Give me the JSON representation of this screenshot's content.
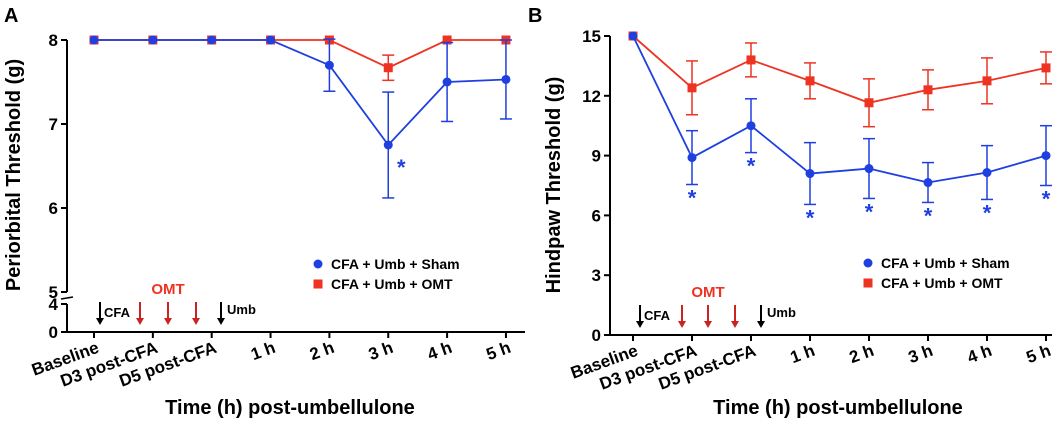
{
  "panels": [
    {
      "letter": "A",
      "colors": {
        "sham": "#1f3fe0",
        "omt": "#ee3322",
        "axis": "#000000",
        "annot_red": "#cc2222"
      },
      "chart_data": {
        "type": "line",
        "title": "",
        "xlabel": "Time (h) post-umbellulone",
        "ylabel": "Periorbital Threshold (g)",
        "categories": [
          "Baseline",
          "D3 post-CFA",
          "D5 post-CFA",
          "1 h",
          "2 h",
          "3 h",
          "4 h",
          "5 h"
        ],
        "ylim": [
          0,
          8
        ],
        "y_break": [
          4,
          5
        ],
        "yticks": [
          0,
          4,
          5,
          6,
          7,
          8
        ],
        "legend_position": "lower-right",
        "series": [
          {
            "name": "CFA + Umb + Sham",
            "marker": "circle",
            "color": "#1f3fe0",
            "values": [
              8,
              8,
              8,
              8,
              7.7,
              6.75,
              7.5,
              7.53
            ],
            "errors": [
              0,
              0,
              0,
              0,
              0.31,
              0.63,
              0.47,
              0.47
            ]
          },
          {
            "name": "CFA + Umb + OMT",
            "marker": "square",
            "color": "#ee3322",
            "values": [
              8,
              8,
              8,
              8,
              8,
              7.67,
              8,
              8
            ],
            "errors": [
              0,
              0,
              0,
              0,
              0,
              0.15,
              0,
              0
            ]
          }
        ],
        "significance": [
          {
            "category": "3 h",
            "label": "*"
          }
        ],
        "annotations": {
          "omt_label": "OMT",
          "cfa_label": "CFA",
          "umb_label": "Umb"
        }
      }
    },
    {
      "letter": "B",
      "colors": {
        "sham": "#1f3fe0",
        "omt": "#ee3322",
        "axis": "#000000",
        "annot_red": "#cc2222"
      },
      "chart_data": {
        "type": "line",
        "title": "",
        "xlabel": "Time (h) post-umbellulone",
        "ylabel": "Hindpaw Threshold (g)",
        "categories": [
          "Baseline",
          "D3 post-CFA",
          "D5 post-CFA",
          "1 h",
          "2 h",
          "3 h",
          "4 h",
          "5 h"
        ],
        "ylim": [
          0,
          15
        ],
        "yticks": [
          0,
          3,
          6,
          9,
          12,
          15
        ],
        "legend_position": "lower-right",
        "series": [
          {
            "name": "CFA + Umb + Sham",
            "marker": "circle",
            "color": "#1f3fe0",
            "values": [
              15,
              8.9,
              10.5,
              8.1,
              8.35,
              7.65,
              8.15,
              9.0
            ],
            "errors": [
              0,
              1.35,
              1.35,
              1.55,
              1.5,
              1.0,
              1.35,
              1.5
            ]
          },
          {
            "name": "CFA + Umb + OMT",
            "marker": "square",
            "color": "#ee3322",
            "values": [
              15,
              12.4,
              13.8,
              12.75,
              11.65,
              12.3,
              12.75,
              13.4
            ],
            "errors": [
              0,
              1.35,
              0.85,
              0.9,
              1.2,
              1.0,
              1.15,
              0.8
            ]
          }
        ],
        "significance": [
          {
            "category": "D3 post-CFA",
            "label": "*"
          },
          {
            "category": "D5 post-CFA",
            "label": "*"
          },
          {
            "category": "1 h",
            "label": "*"
          },
          {
            "category": "2 h",
            "label": "*"
          },
          {
            "category": "3 h",
            "label": "*"
          },
          {
            "category": "4 h",
            "label": "*"
          },
          {
            "category": "5 h",
            "label": "*"
          }
        ],
        "annotations": {
          "omt_label": "OMT",
          "cfa_label": "CFA",
          "umb_label": "Umb"
        }
      }
    }
  ]
}
